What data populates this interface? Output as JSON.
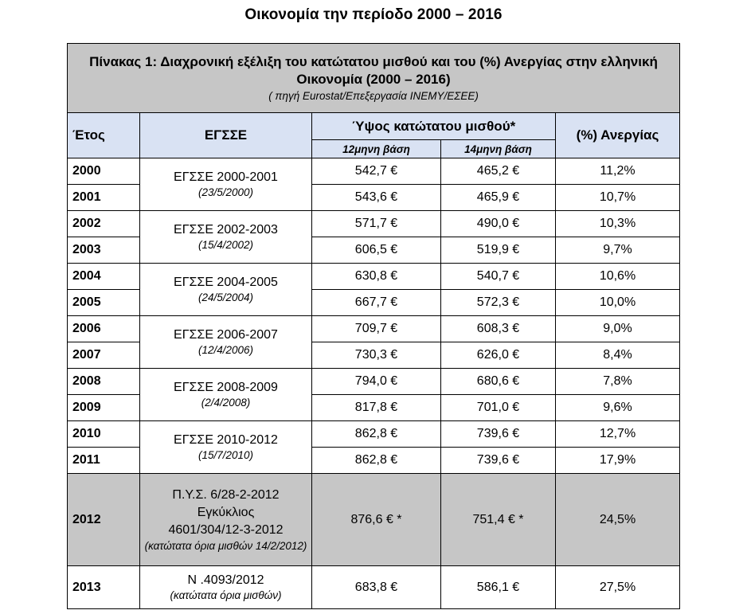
{
  "page_title": "Οικονομία την περίοδο 2000 – 2016",
  "table": {
    "caption_title": "Πίνακας 1: Διαχρονική εξέλιξη του κατώτατου μισθού και του (%) Ανεργίας στην ελληνική Οικονομία (2000 – 2016)",
    "caption_source": "( πηγή Eurostat/Επεξεργασία ΙΝΕΜΥ/ΕΣΕΕ)",
    "headers": {
      "year": "Έτος",
      "egsse": "ΕΓΣΣΕ",
      "wage": "Ύψος κατώτατου μισθού*",
      "wage_12": "12μηνη βάση",
      "wage_14": "14μηνη βάση",
      "unemployment": "(%) Ανεργίας"
    },
    "groups": [
      {
        "egsse": "ΕΓΣΣΕ 2000-2001",
        "date": "(23/5/2000)",
        "rows": [
          {
            "year": "2000",
            "w12": "542,7 €",
            "w14": "465,2 €",
            "unemp": "11,2%"
          },
          {
            "year": "2001",
            "w12": "543,6 €",
            "w14": "465,9 €",
            "unemp": "10,7%"
          }
        ]
      },
      {
        "egsse": "ΕΓΣΣΕ 2002-2003",
        "date": "(15/4/2002)",
        "rows": [
          {
            "year": "2002",
            "w12": "571,7 €",
            "w14": "490,0 €",
            "unemp": "10,3%"
          },
          {
            "year": "2003",
            "w12": "606,5 €",
            "w14": "519,9 €",
            "unemp": "9,7%"
          }
        ]
      },
      {
        "egsse": "ΕΓΣΣΕ 2004-2005",
        "date": "(24/5/2004)",
        "rows": [
          {
            "year": "2004",
            "w12": "630,8 €",
            "w14": "540,7 €",
            "unemp": "10,6%"
          },
          {
            "year": "2005",
            "w12": "667,7 €",
            "w14": "572,3 €",
            "unemp": "10,0%"
          }
        ]
      },
      {
        "egsse": "ΕΓΣΣΕ 2006-2007",
        "date": "(12/4/2006)",
        "rows": [
          {
            "year": "2006",
            "w12": "709,7 €",
            "w14": "608,3 €",
            "unemp": "9,0%"
          },
          {
            "year": "2007",
            "w12": "730,3 €",
            "w14": "626,0 €",
            "unemp": "8,4%"
          }
        ]
      },
      {
        "egsse": "ΕΓΣΣΕ 2008-2009",
        "date": "(2/4/2008)",
        "rows": [
          {
            "year": "2008",
            "w12": "794,0 €",
            "w14": "680,6 €",
            "unemp": "7,8%"
          },
          {
            "year": "2009",
            "w12": "817,8 €",
            "w14": "701,0 €",
            "unemp": "9,6%"
          }
        ]
      },
      {
        "egsse": "ΕΓΣΣΕ 2010-2012",
        "date": "(15/7/2010)",
        "rows": [
          {
            "year": "2010",
            "w12": "862,8 €",
            "w14": "739,6 €",
            "unemp": "12,7%"
          },
          {
            "year": "2011",
            "w12": "862,8 €",
            "w14": "739,6 €",
            "unemp": "17,9%"
          }
        ]
      }
    ],
    "row_2012": {
      "year": "2012",
      "egsse_lines": [
        "Π.Υ.Σ. 6/28-2-2012",
        "Εγκύκλιος",
        "4601/304/12-3-2012"
      ],
      "egsse_note": "(κατώτατα όρια μισθών 14/2/2012)",
      "w12": "876,6 € *",
      "w14": "751,4 € *",
      "unemp": "24,5%"
    },
    "row_2013": {
      "year": "2013",
      "egsse_line": "Ν .4093/2012",
      "egsse_note": "(κατώτατα όρια μισθών)",
      "w12": "683,8 €",
      "w14": "586,1 €",
      "unemp": "27,5%"
    }
  }
}
